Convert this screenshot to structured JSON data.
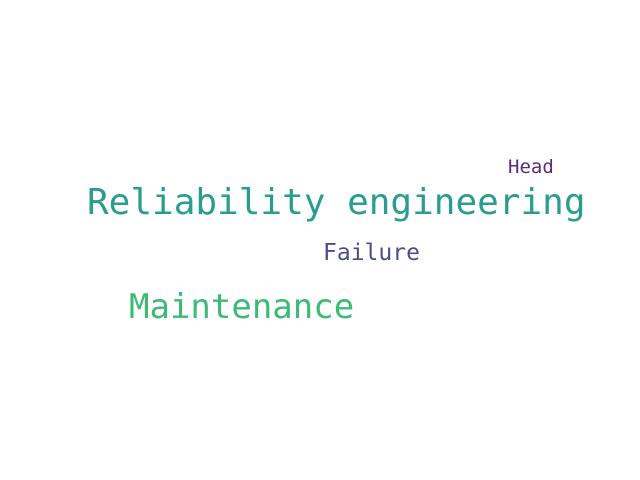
{
  "words": [
    {
      "text": "Reliability engineering",
      "color": "#2a9d8f"
    },
    {
      "text": "Maintenance",
      "color": "#3cbb75"
    },
    {
      "text": "Failure",
      "color": "#4a4e8c"
    },
    {
      "text": "Head",
      "color": "#5a2a7a"
    }
  ]
}
